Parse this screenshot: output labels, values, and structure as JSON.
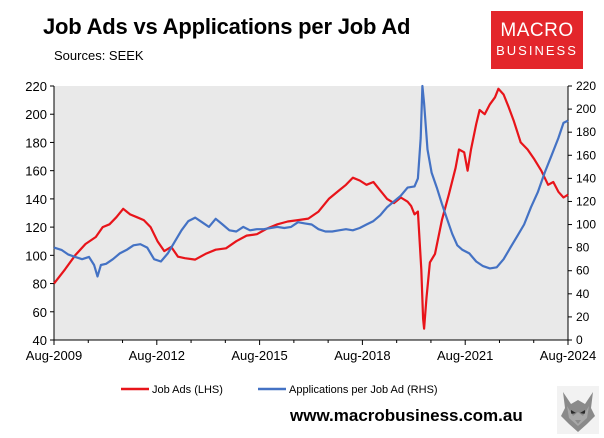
{
  "header": {
    "title": "Job Ads vs Applications per Job Ad",
    "subtitle": "Sources: SEEK"
  },
  "logo": {
    "line1": "MACRO",
    "line2": "BUSINESS",
    "color": "#e3262b"
  },
  "footer": {
    "url": "www.macrobusiness.com.au"
  },
  "chart_data": {
    "type": "line",
    "title": "Job Ads vs Applications per Job Ad",
    "xlabel": "",
    "ylabel": "",
    "x_ticks": [
      "Aug-2009",
      "Aug-2012",
      "Aug-2015",
      "Aug-2018",
      "Aug-2021",
      "Aug-2024"
    ],
    "x_range": [
      2009.58,
      2024.58
    ],
    "y_left": {
      "ticks": [
        40,
        60,
        80,
        100,
        120,
        140,
        160,
        180,
        200,
        220
      ],
      "range": [
        40,
        220
      ]
    },
    "y_right": {
      "ticks": [
        0,
        20,
        40,
        60,
        80,
        100,
        120,
        140,
        160,
        180,
        200,
        220
      ],
      "range": [
        0,
        220
      ]
    },
    "grid": false,
    "legend": "bottom",
    "series": [
      {
        "name": "Job Ads (LHS)",
        "color": "#e8141a",
        "axis": "left",
        "points": [
          [
            2009.58,
            80
          ],
          [
            2009.9,
            90
          ],
          [
            2010.2,
            100
          ],
          [
            2010.5,
            108
          ],
          [
            2010.8,
            113
          ],
          [
            2011.0,
            120
          ],
          [
            2011.2,
            122
          ],
          [
            2011.4,
            127
          ],
          [
            2011.6,
            133
          ],
          [
            2011.8,
            129
          ],
          [
            2012.0,
            127
          ],
          [
            2012.2,
            125
          ],
          [
            2012.4,
            120
          ],
          [
            2012.6,
            110
          ],
          [
            2012.8,
            103
          ],
          [
            2013.0,
            106
          ],
          [
            2013.2,
            99
          ],
          [
            2013.4,
            98
          ],
          [
            2013.7,
            97
          ],
          [
            2014.0,
            101
          ],
          [
            2014.3,
            104
          ],
          [
            2014.6,
            105
          ],
          [
            2014.9,
            110
          ],
          [
            2015.2,
            114
          ],
          [
            2015.5,
            115
          ],
          [
            2015.8,
            119
          ],
          [
            2016.1,
            122
          ],
          [
            2016.4,
            124
          ],
          [
            2016.7,
            125
          ],
          [
            2017.0,
            126
          ],
          [
            2017.3,
            131
          ],
          [
            2017.6,
            140
          ],
          [
            2017.9,
            146
          ],
          [
            2018.1,
            150
          ],
          [
            2018.3,
            155
          ],
          [
            2018.5,
            153
          ],
          [
            2018.7,
            150
          ],
          [
            2018.9,
            152
          ],
          [
            2019.1,
            146
          ],
          [
            2019.3,
            140
          ],
          [
            2019.5,
            137
          ],
          [
            2019.7,
            141
          ],
          [
            2019.9,
            138
          ],
          [
            2020.0,
            135
          ],
          [
            2020.1,
            129
          ],
          [
            2020.2,
            131
          ],
          [
            2020.3,
            90
          ],
          [
            2020.35,
            55
          ],
          [
            2020.38,
            48
          ],
          [
            2020.45,
            70
          ],
          [
            2020.55,
            95
          ],
          [
            2020.7,
            101
          ],
          [
            2020.9,
            125
          ],
          [
            2021.1,
            143
          ],
          [
            2021.3,
            162
          ],
          [
            2021.4,
            175
          ],
          [
            2021.55,
            173
          ],
          [
            2021.65,
            160
          ],
          [
            2021.75,
            175
          ],
          [
            2021.9,
            193
          ],
          [
            2022.0,
            203
          ],
          [
            2022.15,
            200
          ],
          [
            2022.3,
            207
          ],
          [
            2022.45,
            212
          ],
          [
            2022.55,
            218
          ],
          [
            2022.7,
            214
          ],
          [
            2022.85,
            205
          ],
          [
            2023.0,
            195
          ],
          [
            2023.2,
            180
          ],
          [
            2023.4,
            175
          ],
          [
            2023.6,
            168
          ],
          [
            2023.8,
            160
          ],
          [
            2024.0,
            150
          ],
          [
            2024.15,
            152
          ],
          [
            2024.3,
            145
          ],
          [
            2024.45,
            141
          ],
          [
            2024.58,
            143
          ]
        ]
      },
      {
        "name": "Applications per Job Ad (RHS)",
        "color": "#4472c4",
        "axis": "right",
        "points": [
          [
            2009.58,
            80
          ],
          [
            2009.8,
            78
          ],
          [
            2010.0,
            74
          ],
          [
            2010.2,
            72
          ],
          [
            2010.4,
            70
          ],
          [
            2010.6,
            72
          ],
          [
            2010.75,
            65
          ],
          [
            2010.85,
            55
          ],
          [
            2010.95,
            65
          ],
          [
            2011.1,
            66
          ],
          [
            2011.3,
            70
          ],
          [
            2011.5,
            75
          ],
          [
            2011.7,
            78
          ],
          [
            2011.9,
            82
          ],
          [
            2012.1,
            83
          ],
          [
            2012.3,
            80
          ],
          [
            2012.5,
            70
          ],
          [
            2012.7,
            68
          ],
          [
            2012.9,
            75
          ],
          [
            2013.1,
            85
          ],
          [
            2013.3,
            95
          ],
          [
            2013.5,
            103
          ],
          [
            2013.7,
            106
          ],
          [
            2013.9,
            102
          ],
          [
            2014.1,
            98
          ],
          [
            2014.3,
            105
          ],
          [
            2014.5,
            100
          ],
          [
            2014.7,
            95
          ],
          [
            2014.9,
            94
          ],
          [
            2015.1,
            98
          ],
          [
            2015.3,
            95
          ],
          [
            2015.5,
            96
          ],
          [
            2015.7,
            96
          ],
          [
            2015.9,
            97
          ],
          [
            2016.1,
            98
          ],
          [
            2016.3,
            97
          ],
          [
            2016.5,
            98
          ],
          [
            2016.7,
            102
          ],
          [
            2016.9,
            101
          ],
          [
            2017.1,
            100
          ],
          [
            2017.3,
            96
          ],
          [
            2017.5,
            94
          ],
          [
            2017.7,
            94
          ],
          [
            2017.9,
            95
          ],
          [
            2018.1,
            96
          ],
          [
            2018.3,
            95
          ],
          [
            2018.5,
            97
          ],
          [
            2018.7,
            100
          ],
          [
            2018.9,
            103
          ],
          [
            2019.1,
            108
          ],
          [
            2019.3,
            115
          ],
          [
            2019.5,
            120
          ],
          [
            2019.7,
            125
          ],
          [
            2019.9,
            132
          ],
          [
            2020.1,
            133
          ],
          [
            2020.2,
            140
          ],
          [
            2020.28,
            175
          ],
          [
            2020.33,
            220
          ],
          [
            2020.38,
            205
          ],
          [
            2020.48,
            165
          ],
          [
            2020.6,
            145
          ],
          [
            2020.75,
            132
          ],
          [
            2020.9,
            118
          ],
          [
            2021.05,
            105
          ],
          [
            2021.2,
            92
          ],
          [
            2021.35,
            82
          ],
          [
            2021.5,
            78
          ],
          [
            2021.7,
            75
          ],
          [
            2021.9,
            68
          ],
          [
            2022.1,
            64
          ],
          [
            2022.3,
            62
          ],
          [
            2022.5,
            63
          ],
          [
            2022.7,
            70
          ],
          [
            2022.9,
            80
          ],
          [
            2023.1,
            90
          ],
          [
            2023.3,
            100
          ],
          [
            2023.5,
            115
          ],
          [
            2023.7,
            128
          ],
          [
            2023.9,
            145
          ],
          [
            2024.1,
            160
          ],
          [
            2024.3,
            175
          ],
          [
            2024.45,
            188
          ],
          [
            2024.58,
            190
          ]
        ]
      }
    ]
  }
}
